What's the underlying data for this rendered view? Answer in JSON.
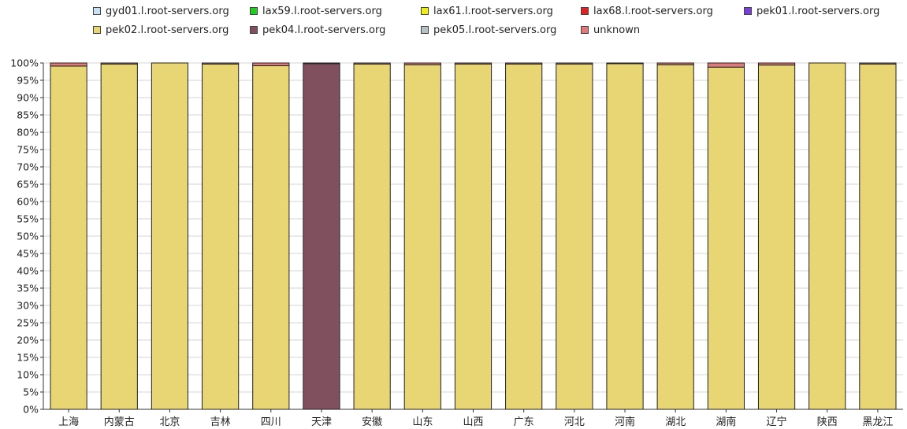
{
  "chart_data": {
    "type": "bar",
    "stacked": true,
    "percent": true,
    "ylim": [
      0,
      100
    ],
    "yticks_step": 5,
    "grid": true,
    "legend_position": "top",
    "categories": [
      "上海",
      "内蒙古",
      "北京",
      "吉林",
      "四川",
      "天津",
      "安徽",
      "山东",
      "山西",
      "广东",
      "河北",
      "河南",
      "湖北",
      "湖南",
      "辽宁",
      "陕西",
      "黑龙江"
    ],
    "series": [
      {
        "name": "gyd01.l.root-servers.org",
        "color": "#c7e3f3",
        "values": [
          0,
          0,
          0,
          0,
          0,
          0,
          0,
          0,
          0,
          0,
          0,
          0,
          0,
          0,
          0,
          0,
          0
        ]
      },
      {
        "name": "lax59.l.root-servers.org",
        "color": "#22cc22",
        "values": [
          0,
          0,
          0,
          0,
          0,
          0,
          0,
          0,
          0,
          0,
          0,
          0,
          0,
          0,
          0,
          0,
          0
        ]
      },
      {
        "name": "lax61.l.root-servers.org",
        "color": "#eeee11",
        "values": [
          0,
          0,
          0,
          0,
          0,
          0,
          0,
          0,
          0,
          0,
          0,
          0,
          0,
          0,
          0,
          0,
          0
        ]
      },
      {
        "name": "lax68.l.root-servers.org",
        "color": "#dd2222",
        "values": [
          0,
          0,
          0,
          0,
          0,
          0,
          0,
          0,
          0,
          0,
          0,
          0,
          0,
          0,
          0,
          0,
          0
        ]
      },
      {
        "name": "pek01.l.root-servers.org",
        "color": "#7a3fd6",
        "values": [
          0,
          0,
          0,
          0,
          0,
          0,
          0,
          0,
          0,
          0,
          0,
          0,
          0,
          0,
          0,
          0,
          0
        ]
      },
      {
        "name": "pek02.l.root-servers.org",
        "color": "#e8d574",
        "values": [
          99.1,
          99.7,
          100,
          99.7,
          99.2,
          0,
          99.7,
          99.5,
          99.7,
          99.7,
          99.7,
          99.8,
          99.5,
          98.8,
          99.4,
          100,
          99.7
        ]
      },
      {
        "name": "pek04.l.root-servers.org",
        "color": "#80505e",
        "values": [
          0,
          0,
          0,
          0,
          0,
          99.8,
          0,
          0,
          0,
          0,
          0,
          0,
          0,
          0,
          0,
          0,
          0
        ]
      },
      {
        "name": "pek05.l.root-servers.org",
        "color": "#b4c2c6",
        "values": [
          0,
          0,
          0,
          0,
          0,
          0,
          0,
          0,
          0,
          0,
          0,
          0,
          0,
          0,
          0,
          0,
          0
        ]
      },
      {
        "name": "unknown",
        "color": "#e07a7a",
        "values": [
          0.9,
          0.3,
          0,
          0.3,
          0.8,
          0.2,
          0.3,
          0.5,
          0.3,
          0.3,
          0.3,
          0.2,
          0.5,
          1.2,
          0.6,
          0,
          0.3
        ]
      }
    ]
  }
}
